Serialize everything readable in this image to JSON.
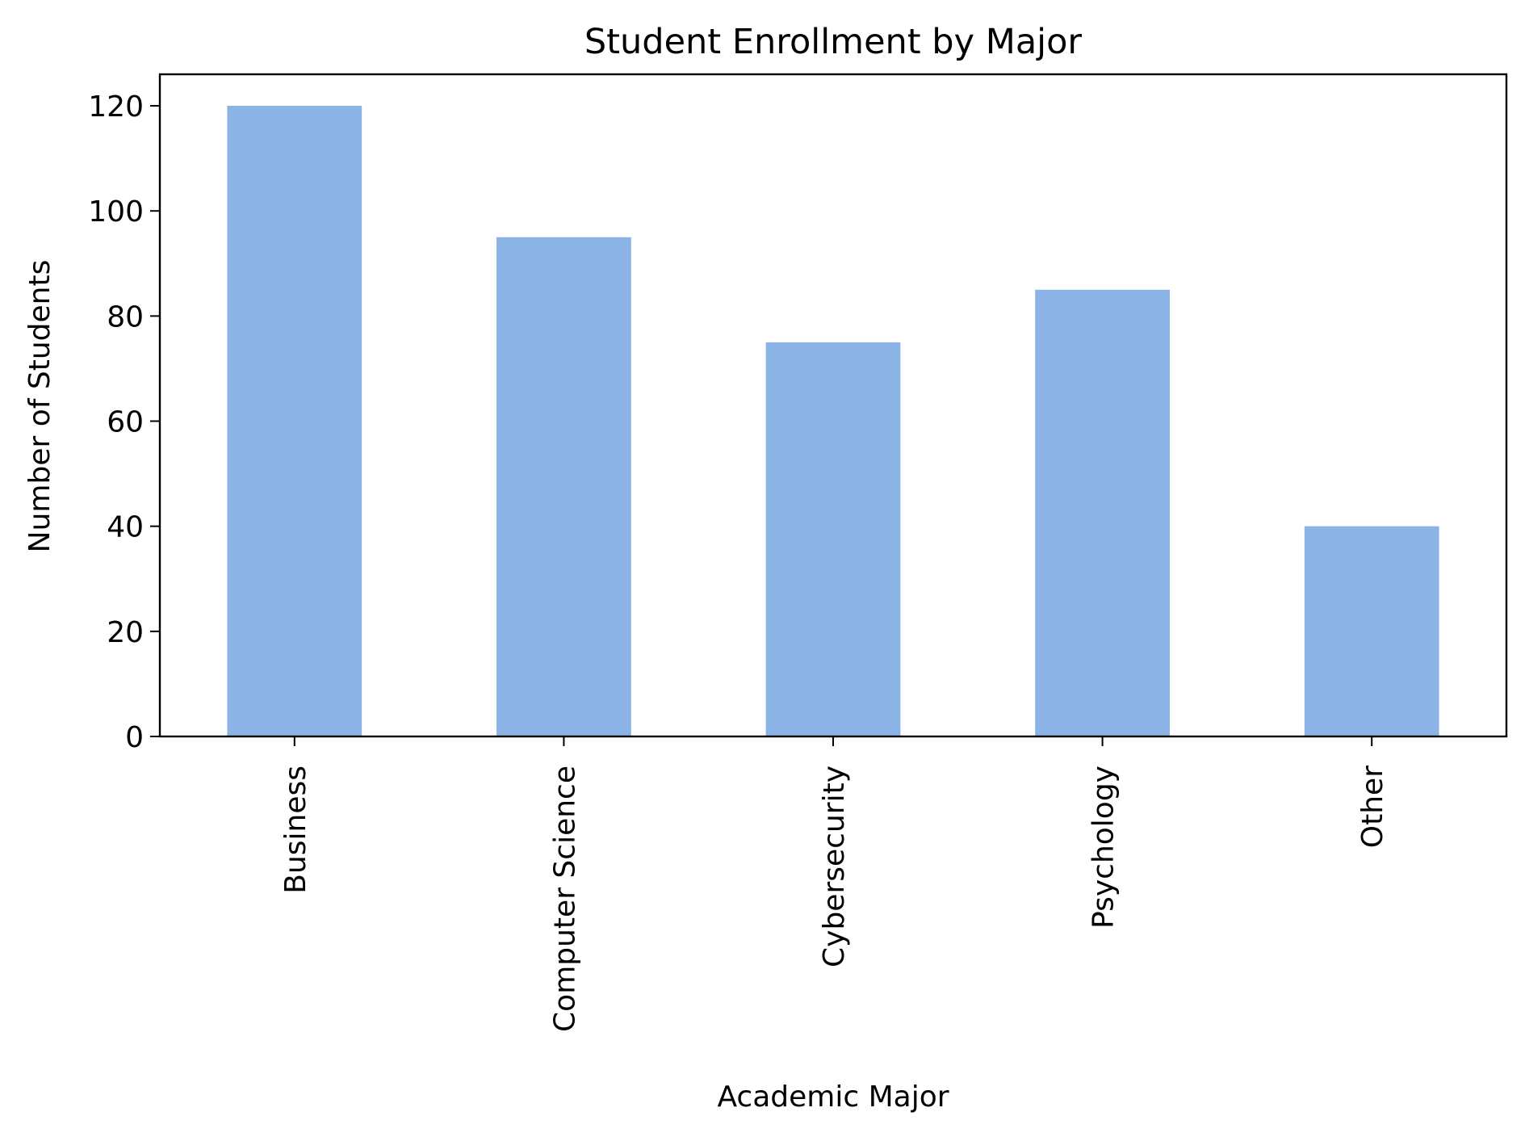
{
  "chart_data": {
    "type": "bar",
    "title": "Student Enrollment by Major",
    "xlabel": "Academic Major",
    "ylabel": "Number of Students",
    "categories": [
      "Business",
      "Computer Science",
      "Cybersecurity",
      "Psychology",
      "Other"
    ],
    "values": [
      120,
      95,
      75,
      85,
      40
    ],
    "ylim": [
      0,
      126
    ],
    "yticks": [
      0,
      20,
      40,
      60,
      80,
      100,
      120
    ],
    "bar_color": "#8cb3e5",
    "grid": false,
    "legend": "none"
  }
}
